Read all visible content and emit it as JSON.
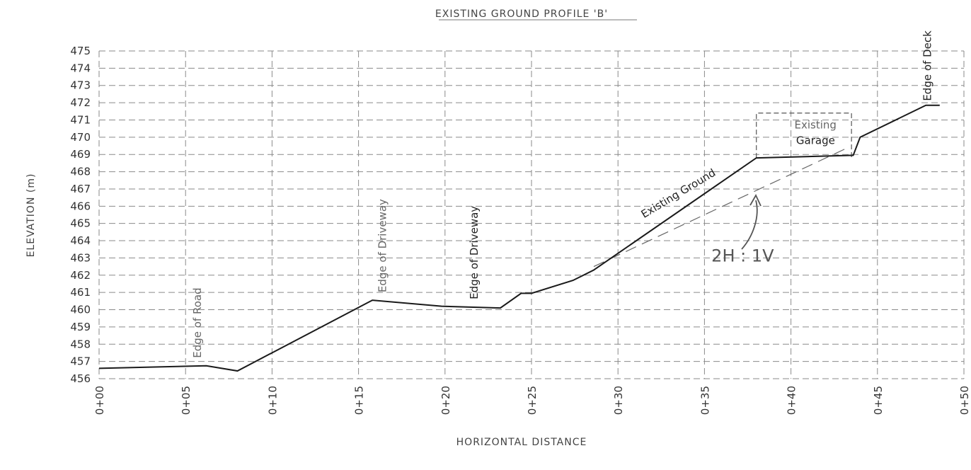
{
  "chart_data": {
    "type": "line",
    "title": "EXISTING GROUND PROFILE 'B'",
    "xlabel": "HORIZONTAL DISTANCE",
    "ylabel": "ELEVATION (m)",
    "xlim": [
      0,
      50
    ],
    "ylim": [
      456,
      475
    ],
    "grid": true,
    "x_ticks": [
      {
        "value": 0,
        "label": "0+00"
      },
      {
        "value": 5,
        "label": "0+05"
      },
      {
        "value": 10,
        "label": "0+10"
      },
      {
        "value": 15,
        "label": "0+15"
      },
      {
        "value": 20,
        "label": "0+20"
      },
      {
        "value": 25,
        "label": "0+25"
      },
      {
        "value": 30,
        "label": "0+30"
      },
      {
        "value": 35,
        "label": "0+35"
      },
      {
        "value": 40,
        "label": "0+40"
      },
      {
        "value": 45,
        "label": "0+45"
      },
      {
        "value": 50,
        "label": "0+50"
      }
    ],
    "y_ticks": [
      456,
      457,
      458,
      459,
      460,
      461,
      462,
      463,
      464,
      465,
      466,
      467,
      468,
      469,
      470,
      471,
      472,
      473,
      474,
      475
    ],
    "series": [
      {
        "x": [
          0,
          6.2,
          8,
          15.8,
          19.8,
          23.2,
          24.4,
          25.0,
          27.4,
          28.6,
          38.0,
          43.6,
          44.0,
          47.8,
          48.6
        ],
        "y": [
          456.6,
          456.75,
          456.45,
          460.55,
          460.2,
          460.1,
          460.95,
          460.95,
          461.7,
          462.3,
          468.8,
          468.95,
          470.0,
          471.85,
          471.85
        ]
      }
    ],
    "slope_line": {
      "x": [
        28.6,
        43.3
      ],
      "y": [
        462.5,
        469.4
      ]
    },
    "garage_box": {
      "x": [
        38,
        43.5
      ],
      "y": [
        468.8,
        471.4
      ]
    },
    "annotations": [
      {
        "text": "Edge of Road",
        "x": 5.9,
        "y": 457.2,
        "rotation": -90,
        "style": "light"
      },
      {
        "text": "Edge of Driveway",
        "x": 16.6,
        "y": 461.0,
        "rotation": -90,
        "style": "light"
      },
      {
        "text": "Edge of Driveway",
        "x": 21.9,
        "y": 460.6,
        "rotation": -90,
        "style": "dark"
      },
      {
        "text": "Existing Ground",
        "x": 31.5,
        "y": 465.3,
        "rotation": -31,
        "style": "dark"
      },
      {
        "text": "Existing",
        "x": 40.2,
        "y": 470.5,
        "rotation": 0,
        "style": "light"
      },
      {
        "text": "Garage",
        "x": 40.3,
        "y": 469.6,
        "rotation": 0,
        "style": "dark"
      },
      {
        "text": "Edge of Deck",
        "x": 48.1,
        "y": 472.1,
        "rotation": -90,
        "style": "mixed"
      },
      {
        "text": "2H : 1V",
        "x": 35.4,
        "y": 462.8,
        "rotation": 0,
        "style": "hand"
      }
    ]
  }
}
